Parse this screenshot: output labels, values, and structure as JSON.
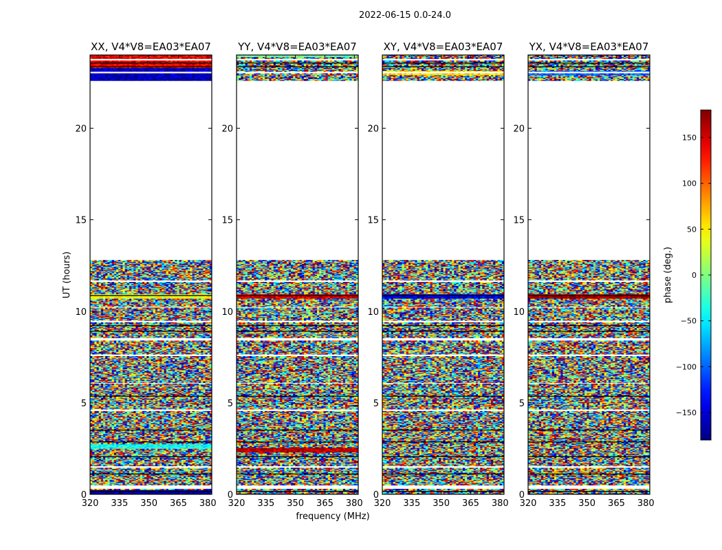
{
  "chart_data": {
    "type": "heatmap",
    "suptitle": "2022-06-15 0.0-24.0",
    "xlabel": "frequency (MHz)",
    "ylabel": "UT (hours)",
    "xlim": [
      320,
      382
    ],
    "ylim": [
      0,
      24
    ],
    "xticks": [
      "320",
      "335",
      "350",
      "365",
      "380"
    ],
    "xtick_values": [
      320,
      335,
      350,
      365,
      380
    ],
    "yticks": [
      "0",
      "5",
      "10",
      "15",
      "20"
    ],
    "ytick_values": [
      0,
      5,
      10,
      15,
      20
    ],
    "colorbar": {
      "label": "phase (deg.)",
      "range": [
        -180,
        180
      ],
      "ticks": [
        "150",
        "100",
        "50",
        "0",
        "−50",
        "−100",
        "−150"
      ],
      "tick_values": [
        150,
        100,
        50,
        0,
        -50,
        -100,
        -150
      ],
      "colormap": "jet"
    },
    "panels": [
      {
        "title": "XX, V4*V8=EA03*EA07",
        "dominant_phase_deg": {
          "10.8": 40,
          "2.6": -40,
          "0.1": -170
        },
        "data_ranges_hours": [
          [
            0,
            12.8
          ],
          [
            22.6,
            24
          ]
        ]
      },
      {
        "title": "YY, V4*V8=EA03*EA07",
        "dominant_phase_deg": {
          "10.8": 150,
          "2.4": 160,
          "24": -10
        },
        "data_ranges_hours": [
          [
            0,
            12.8
          ],
          [
            22.6,
            24
          ]
        ]
      },
      {
        "title": "XY, V4*V8=EA03*EA07",
        "dominant_phase_deg": {
          "23": 60,
          "10.8": -150
        },
        "data_ranges_hours": [
          [
            0,
            12.8
          ],
          [
            22.6,
            24
          ]
        ]
      },
      {
        "title": "YX, V4*V8=EA03*EA07",
        "dominant_phase_deg": {
          "10.8": 170,
          "23": -100
        },
        "data_ranges_hours": [
          [
            0,
            12.8
          ],
          [
            22.6,
            24
          ]
        ]
      }
    ],
    "gaps_hours": [
      [
        12.8,
        22.6
      ],
      [
        0.3,
        0.45
      ],
      [
        1.45,
        1.55
      ],
      [
        4.5,
        4.6
      ],
      [
        6.0,
        6.05
      ],
      [
        7.5,
        7.6
      ],
      [
        8.35,
        8.5
      ],
      [
        9.35,
        9.5
      ],
      [
        10.2,
        10.25
      ],
      [
        11.6,
        11.7
      ],
      [
        23.7,
        23.8
      ],
      [
        23.0,
        23.1
      ]
    ]
  }
}
